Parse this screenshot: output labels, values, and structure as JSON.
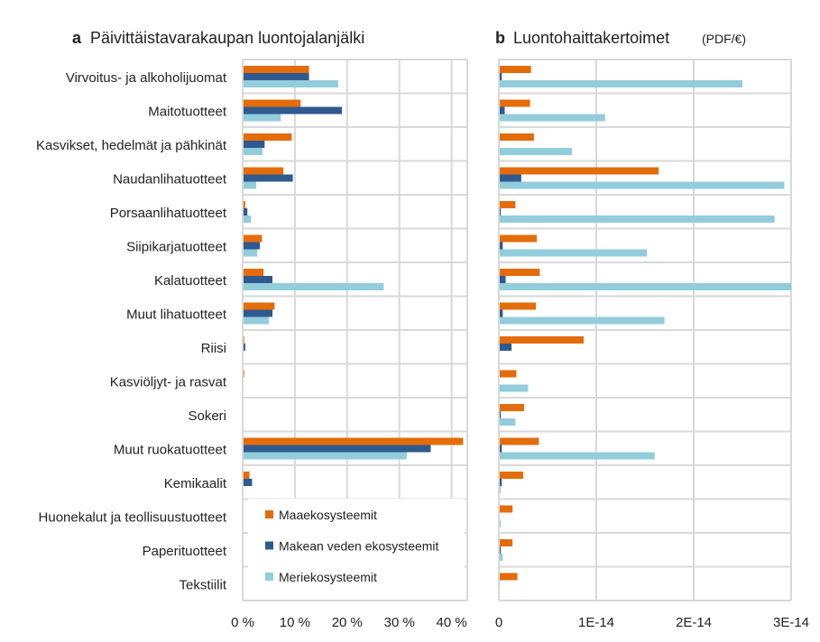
{
  "colors": {
    "land": "#E46C0A",
    "freshwater": "#2F5A8F",
    "marine": "#92CDDC",
    "grid": "#D9D9D9"
  },
  "categories": [
    "Virvoitus- ja alkoholijuomat",
    "Maitotuotteet",
    "Kasvikset, hedelmät ja pähkinät",
    "Naudanlihatuotteet",
    "Porsaanlihatuotteet",
    "Siipikarjatuotteet",
    "Kalatuotteet",
    "Muut lihatuotteet",
    "Riisi",
    "Kasviöljyt- ja rasvat",
    "Sokeri",
    "Muut ruokatuotteet",
    "Kemikaalit",
    "Huonekalut ja teollisuustuotteet",
    "Paperituotteet",
    "Tekstiilit"
  ],
  "legend": [
    "Maaekosysteemit",
    "Makean veden ekosysteemit",
    "Meriekosysteemit"
  ],
  "chart_data": [
    {
      "type": "bar",
      "orientation": "horizontal",
      "panel": "a",
      "title": "Päivittäistavarakaupan luontojalanjälki",
      "xlim": [
        0,
        43
      ],
      "xticks": [
        0,
        10,
        20,
        30,
        40
      ],
      "xtick_labels": [
        "0 %",
        "10 %",
        "20 %",
        "30 %",
        "40 %"
      ],
      "grid": true,
      "legend_placement": "bottom-right",
      "series": [
        {
          "name": "Maaekosysteemit",
          "values": [
            12.7,
            11.1,
            9.4,
            7.8,
            0.5,
            3.7,
            4.0,
            6.1,
            0.3,
            0.3,
            0,
            42.2,
            1.3,
            0,
            0,
            0
          ]
        },
        {
          "name": "Makean veden ekosysteemit",
          "values": [
            12.7,
            19.0,
            4.2,
            9.6,
            0.9,
            3.3,
            5.7,
            5.7,
            0.5,
            0.1,
            0,
            36.0,
            1.8,
            0,
            0,
            0
          ]
        },
        {
          "name": "Meriekosysteemit",
          "values": [
            18.3,
            7.3,
            3.8,
            2.6,
            1.6,
            2.8,
            27.0,
            5.0,
            0,
            0,
            0,
            31.4,
            0,
            0,
            0,
            0
          ]
        }
      ]
    },
    {
      "type": "bar",
      "orientation": "horizontal",
      "panel": "b",
      "title": "Luontohaittakertoimet",
      "title_unit": "(PDF/€)",
      "xlim": [
        0,
        3e-14
      ],
      "xticks": [
        0,
        1e-14,
        2e-14,
        3e-14
      ],
      "xtick_labels": [
        "0",
        "1E-14",
        "2E-14",
        "3E-14"
      ],
      "grid": true,
      "series": [
        {
          "name": "Maaekosysteemit",
          "values": [
            3.3e-15,
            3.2e-15,
            3.6e-15,
            1.64e-14,
            1.7e-15,
            3.9e-15,
            4.2e-15,
            3.8e-15,
            8.7e-15,
            1.8e-15,
            2.6e-15,
            4.1e-15,
            2.5e-15,
            1.4e-15,
            1.4e-15,
            1.9e-15
          ]
        },
        {
          "name": "Makean veden ekosysteemit",
          "values": [
            3e-16,
            6e-16,
            1e-16,
            2.3e-15,
            2e-16,
            4e-16,
            7e-16,
            4e-16,
            1.3e-15,
            5e-17,
            2e-16,
            3e-16,
            3e-16,
            1e-16,
            2e-16,
            1e-16
          ]
        },
        {
          "name": "Meriekosysteemit",
          "values": [
            2.5e-14,
            1.09e-14,
            7.5e-15,
            2.93e-14,
            2.83e-14,
            1.52e-14,
            3e-14,
            1.7e-14,
            5e-17,
            3e-15,
            1.7e-15,
            1.6e-14,
            2e-16,
            2e-16,
            4e-16,
            1e-16
          ]
        }
      ]
    }
  ]
}
